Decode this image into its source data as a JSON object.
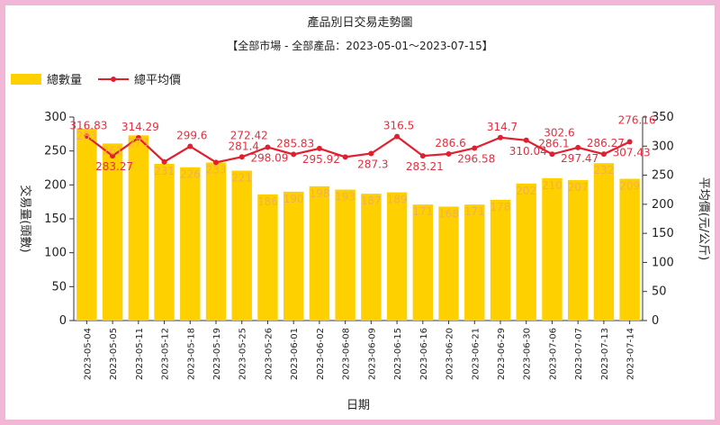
{
  "title": "產品別日交易走勢圖",
  "subtitle": "【全部市場 - 全部產品：2023-05-01～2023-07-15】",
  "legend": {
    "bar": "總數量",
    "line": "總平均價"
  },
  "colors": {
    "bar": "#ffd000",
    "line": "#e0202f",
    "frame": "#f2b6d6"
  },
  "chart_data": {
    "type": "bar",
    "title": "產品別日交易走勢圖",
    "subtitle": "【全部市場 - 全部產品：2023-05-01～2023-07-15】",
    "xlabel": "日期",
    "ylabel": "交易量(頭數)",
    "ylabel2": "平均價(元/公斤)",
    "ylim": [
      0,
      300
    ],
    "ylim2": [
      0,
      350
    ],
    "yticks": [
      0,
      50,
      100,
      150,
      200,
      250,
      300
    ],
    "yticks2": [
      0,
      50,
      100,
      150,
      200,
      250,
      300,
      350
    ],
    "categories": [
      "2023-05-04",
      "2023-05-05",
      "2023-05-11",
      "2023-05-12",
      "2023-05-18",
      "2023-05-19",
      "2023-05-25",
      "2023-05-26",
      "2023-06-01",
      "2023-06-02",
      "2023-06-08",
      "2023-06-09",
      "2023-06-15",
      "2023-06-16",
      "2023-06-20",
      "2023-06-21",
      "2023-06-29",
      "2023-06-30",
      "2023-07-06",
      "2023-07-07",
      "2023-07-13",
      "2023-07-14"
    ],
    "series": [
      {
        "name": "總數量",
        "type": "bar",
        "axis": "left",
        "values": [
          283,
          261,
          273,
          231,
          226,
          233,
          221,
          186,
          190,
          198,
          193,
          187,
          189,
          171,
          168,
          171,
          178,
          202,
          210,
          207,
          232,
          209
        ]
      },
      {
        "name": "總平均價",
        "type": "line",
        "axis": "right",
        "values": [
          316.83,
          283.27,
          314.29,
          273.03,
          299.6,
          272.0,
          281.4,
          298.09,
          285.83,
          295.92,
          281.3,
          287.3,
          316.5,
          283.21,
          286.6,
          296.58,
          314.7,
          310.04,
          286.1,
          297.47,
          286.27,
          307.43
        ],
        "labels": [
          "316.83",
          "283.27",
          "314.29",
          "",
          "299.6",
          "",
          "281.4",
          "298.09",
          "285.83",
          "295.92",
          "",
          "287.3",
          "316.5",
          "283.21",
          "286.6",
          "296.58",
          "314.7",
          "310.04",
          "286.1",
          "297.47",
          "286.27",
          "307.43"
        ]
      }
    ],
    "extra_labels": [
      {
        "text": "272.42",
        "index": 6
      },
      {
        "text": "302.6",
        "index": 18
      },
      {
        "text": "276.16",
        "index": 21
      }
    ]
  }
}
